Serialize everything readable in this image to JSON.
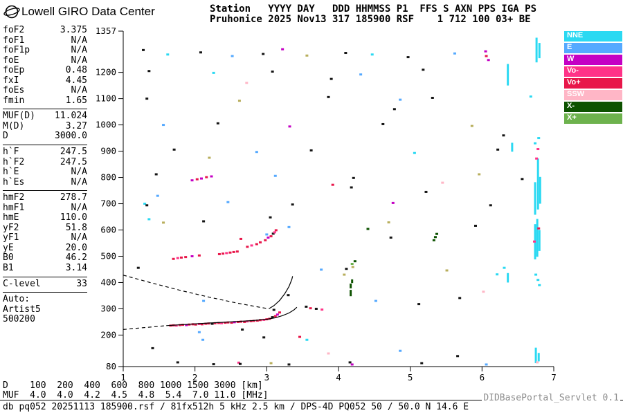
{
  "header": {
    "app_title": "Lowell GIRO Data Center",
    "station_line1": "Station   YYYY DAY   DDD HHMMSS P1  FFS S AXN PPS IGA PS",
    "station_line2": "Pruhonice 2025 Nov13 317 185900 RSF    1 712 100 03+ BE"
  },
  "params": {
    "groups": [
      {
        "rows": [
          [
            "foF2",
            "3.375"
          ],
          [
            "foF1",
            "N/A"
          ],
          [
            "foF1p",
            "N/A"
          ],
          [
            "foE",
            "N/A"
          ],
          [
            "foEp",
            "0.48"
          ],
          [
            "fxI",
            "4.45"
          ],
          [
            "foEs",
            "N/A"
          ],
          [
            "fmin",
            "1.65"
          ]
        ]
      },
      {
        "rows": [
          [
            "MUF(D)",
            "11.024"
          ],
          [
            "M(D)",
            "3.27"
          ],
          [
            "D",
            "3000.0"
          ]
        ]
      },
      {
        "rows": [
          [
            "h`F",
            "247.5"
          ],
          [
            "h`F2",
            "247.5"
          ],
          [
            "h`E",
            "N/A"
          ],
          [
            "h`Es",
            "N/A"
          ]
        ]
      },
      {
        "rows": [
          [
            "hmF2",
            "278.7"
          ],
          [
            "hmF1",
            "N/A"
          ],
          [
            "hmE",
            "110.0"
          ],
          [
            "yF2",
            "51.8"
          ],
          [
            "yF1",
            "N/A"
          ],
          [
            "yE",
            "20.0"
          ],
          [
            "B0",
            "46.2"
          ],
          [
            "B1",
            "3.14"
          ]
        ]
      },
      {
        "rows": [
          [
            "C-level",
            "33"
          ]
        ]
      }
    ],
    "auto_lines": [
      "Auto:",
      "Artist5",
      "500200"
    ]
  },
  "legend": {
    "items": [
      {
        "label": "NNE",
        "color": "#2BD9F2"
      },
      {
        "label": "E",
        "color": "#55A9FF"
      },
      {
        "label": "W",
        "color": "#C400C4"
      },
      {
        "label": "Vo-",
        "color": "#FF3388"
      },
      {
        "label": "Vo+",
        "color": "#E8174A"
      },
      {
        "label": "SSW",
        "color": "#FFB6C6"
      },
      {
        "label": "X-",
        "color": "#0D5200"
      },
      {
        "label": "X+",
        "color": "#6DB24D"
      }
    ]
  },
  "footer": {
    "d_line": "D    100  200  400  600  800 1000 1500 3000 [km]",
    "muf_line": "MUF  4.0  4.0  4.2  4.5  4.8  5.4  7.0 11.0 [MHz]",
    "status_line": "db pq052 20251113 185900.rsf / 81fx512h 5 kHz 2.5 km / DPS-4D PQ052 50 / 50.0 N 14.6 E",
    "servlet_label": "DIDBasePortal_Servlet 0.1"
  },
  "chart_data": {
    "type": "scatter",
    "title": "Digisonde ionogram, Pruhonice 2025 Nov13 317 185900",
    "x_axis": {
      "label": "[MHz]",
      "min": 1,
      "max": 7,
      "ticks": [
        1,
        2,
        3,
        4,
        5,
        6,
        7
      ]
    },
    "y_axis": {
      "label": "[km]",
      "min": 80,
      "max": 1357,
      "ticks": [
        80,
        200,
        300,
        400,
        500,
        600,
        700,
        800,
        900,
        1000,
        1100,
        1200,
        1357
      ]
    },
    "palette": {
      "C": "#2BD9F2",
      "E": "#55A9FF",
      "W": "#C400C4",
      "P": "#FF3388",
      "R": "#E8174A",
      "S": "#FFB6C6",
      "G": "#0D5200",
      "g": "#6DB24D",
      "K": "#141414",
      "Y": "#B8AE5C"
    },
    "echo_points": [
      [
        1.66,
        236,
        "R"
      ],
      [
        1.7,
        237,
        "R"
      ],
      [
        1.74,
        236,
        "P"
      ],
      [
        1.79,
        238,
        "R"
      ],
      [
        1.83,
        239,
        "R"
      ],
      [
        1.88,
        238,
        "W"
      ],
      [
        1.92,
        240,
        "R"
      ],
      [
        1.97,
        241,
        "R"
      ],
      [
        2.01,
        240,
        "R"
      ],
      [
        2.06,
        242,
        "P"
      ],
      [
        2.1,
        241,
        "R"
      ],
      [
        2.15,
        243,
        "R"
      ],
      [
        2.19,
        244,
        "R"
      ],
      [
        2.24,
        243,
        "K"
      ],
      [
        2.28,
        245,
        "R"
      ],
      [
        2.33,
        246,
        "R"
      ],
      [
        2.37,
        245,
        "P"
      ],
      [
        2.42,
        247,
        "R"
      ],
      [
        2.46,
        248,
        "R"
      ],
      [
        2.51,
        247,
        "R"
      ],
      [
        2.55,
        249,
        "W"
      ],
      [
        2.6,
        250,
        "R"
      ],
      [
        2.64,
        251,
        "R"
      ],
      [
        2.69,
        250,
        "R"
      ],
      [
        2.73,
        252,
        "P"
      ],
      [
        2.78,
        253,
        "R"
      ],
      [
        2.82,
        254,
        "R"
      ],
      [
        2.87,
        255,
        "R"
      ],
      [
        2.91,
        257,
        "R"
      ],
      [
        2.96,
        258,
        "P"
      ],
      [
        3.0,
        260,
        "R"
      ],
      [
        3.04,
        262,
        "R"
      ],
      [
        3.08,
        268,
        "K"
      ],
      [
        3.12,
        272,
        "R"
      ],
      [
        3.15,
        278,
        "W"
      ],
      [
        3.18,
        286,
        "R"
      ],
      [
        3.1,
        296,
        "K"
      ],
      [
        1.7,
        490,
        "R"
      ],
      [
        1.76,
        493,
        "P"
      ],
      [
        1.81,
        495,
        "R"
      ],
      [
        1.87,
        497,
        "R"
      ],
      [
        1.96,
        500,
        "W"
      ],
      [
        2.06,
        503,
        "R"
      ],
      [
        2.34,
        508,
        "R"
      ],
      [
        2.39,
        510,
        "R"
      ],
      [
        2.44,
        512,
        "P"
      ],
      [
        2.49,
        514,
        "R"
      ],
      [
        2.54,
        516,
        "R"
      ],
      [
        2.59,
        518,
        "R"
      ],
      [
        2.73,
        536,
        "R"
      ],
      [
        2.79,
        541,
        "P"
      ],
      [
        2.86,
        546,
        "R"
      ],
      [
        2.91,
        553,
        "R"
      ],
      [
        2.98,
        561,
        "R"
      ],
      [
        3.02,
        571,
        "W"
      ],
      [
        3.06,
        576,
        "R"
      ],
      [
        3.09,
        586,
        "K"
      ],
      [
        3.11,
        591,
        "P"
      ],
      [
        3.13,
        599,
        "R"
      ],
      [
        3.0,
        583,
        "E"
      ],
      [
        2.64,
        566,
        "R"
      ],
      [
        3.61,
        302,
        "R"
      ],
      [
        3.69,
        300,
        "K"
      ],
      [
        3.77,
        297,
        "P"
      ],
      [
        3.55,
        308,
        "K"
      ],
      [
        5.33,
        561,
        "G"
      ],
      [
        5.35,
        573,
        "G"
      ],
      [
        5.37,
        585,
        "G"
      ],
      [
        4.73,
        571,
        "K"
      ],
      [
        1.28,
        1285,
        "K"
      ],
      [
        1.62,
        1268,
        "C"
      ],
      [
        2.08,
        1276,
        "K"
      ],
      [
        2.52,
        1262,
        "E"
      ],
      [
        2.95,
        1270,
        "K"
      ],
      [
        3.22,
        1288,
        "W"
      ],
      [
        3.56,
        1264,
        "Y"
      ],
      [
        4.1,
        1274,
        "K"
      ],
      [
        4.47,
        1268,
        "C"
      ],
      [
        4.97,
        1258,
        "K"
      ],
      [
        5.62,
        1272,
        "E"
      ],
      [
        6.05,
        1280,
        "W"
      ],
      [
        6.06,
        1262,
        "R"
      ],
      [
        6.09,
        1247,
        "W"
      ],
      [
        1.36,
        1205,
        "K"
      ],
      [
        2.26,
        1198,
        "C"
      ],
      [
        3.08,
        1203,
        "K"
      ],
      [
        4.31,
        1192,
        "E"
      ],
      [
        5.18,
        1210,
        "K"
      ],
      [
        2.72,
        1160,
        "S"
      ],
      [
        3.9,
        1175,
        "K"
      ],
      [
        1.33,
        1100,
        "K"
      ],
      [
        2.62,
        1092,
        "Y"
      ],
      [
        3.86,
        1106,
        "K"
      ],
      [
        4.86,
        1096,
        "E"
      ],
      [
        5.31,
        1103,
        "K"
      ],
      [
        6.68,
        1108,
        "C"
      ],
      [
        4.78,
        1060,
        "K"
      ],
      [
        1.56,
        1000,
        "E"
      ],
      [
        2.32,
        1006,
        "K"
      ],
      [
        3.32,
        994,
        "W"
      ],
      [
        4.62,
        1003,
        "K"
      ],
      [
        5.86,
        996,
        "Y"
      ],
      [
        6.3,
        960,
        "K"
      ],
      [
        1.71,
        906,
        "K"
      ],
      [
        2.86,
        897,
        "E"
      ],
      [
        3.62,
        903,
        "K"
      ],
      [
        5.06,
        893,
        "C"
      ],
      [
        6.22,
        906,
        "K"
      ],
      [
        6.78,
        908,
        "P"
      ],
      [
        2.2,
        875,
        "Y"
      ],
      [
        1.96,
        789,
        "W"
      ],
      [
        2.03,
        793,
        "R"
      ],
      [
        2.09,
        796,
        "W"
      ],
      [
        2.16,
        801,
        "R"
      ],
      [
        2.23,
        804,
        "W"
      ],
      [
        1.46,
        812,
        "K"
      ],
      [
        3.12,
        806,
        "E"
      ],
      [
        4.21,
        798,
        "K"
      ],
      [
        5.96,
        812,
        "Y"
      ],
      [
        6.56,
        794,
        "K"
      ],
      [
        3.92,
        772,
        "R"
      ],
      [
        4.18,
        762,
        "K"
      ],
      [
        5.45,
        780,
        "S"
      ],
      [
        1.3,
        700,
        "C"
      ],
      [
        1.33,
        694,
        "K"
      ],
      [
        2.46,
        706,
        "E"
      ],
      [
        3.36,
        697,
        "K"
      ],
      [
        4.76,
        703,
        "W"
      ],
      [
        6.12,
        694,
        "K"
      ],
      [
        1.48,
        730,
        "E"
      ],
      [
        5.22,
        745,
        "K"
      ],
      [
        1.36,
        641,
        "C"
      ],
      [
        1.56,
        628,
        "Y"
      ],
      [
        2.12,
        633,
        "K"
      ],
      [
        3.31,
        611,
        "E"
      ],
      [
        4.7,
        629,
        "Y"
      ],
      [
        5.91,
        616,
        "K"
      ],
      [
        4.41,
        604,
        "G"
      ],
      [
        3.05,
        648,
        "K"
      ],
      [
        1.21,
        456,
        "K"
      ],
      [
        3.76,
        449,
        "E"
      ],
      [
        4.11,
        452,
        "K"
      ],
      [
        5.51,
        446,
        "Y"
      ],
      [
        6.31,
        456,
        "C"
      ],
      [
        4.2,
        459,
        "Y"
      ],
      [
        4.19,
        471,
        "g"
      ],
      [
        4.23,
        481,
        "G"
      ],
      [
        6.21,
        431,
        "C"
      ],
      [
        4.08,
        430,
        "Y"
      ],
      [
        5.69,
        341,
        "K"
      ],
      [
        4.52,
        330,
        "E"
      ],
      [
        5.12,
        318,
        "K"
      ],
      [
        6.02,
        365,
        "S"
      ],
      [
        3.3,
        352,
        "K"
      ],
      [
        2.12,
        330,
        "E"
      ],
      [
        1.76,
        96,
        "K"
      ],
      [
        2.11,
        182,
        "E"
      ],
      [
        2.26,
        89,
        "K"
      ],
      [
        2.61,
        95,
        "P"
      ],
      [
        2.63,
        90,
        "K"
      ],
      [
        3.06,
        93,
        "Y"
      ],
      [
        3.31,
        88,
        "K"
      ],
      [
        3.56,
        182,
        "C"
      ],
      [
        4.16,
        96,
        "K"
      ],
      [
        4.19,
        88,
        "W"
      ],
      [
        5.16,
        93,
        "K"
      ],
      [
        6.06,
        88,
        "E"
      ],
      [
        2.96,
        191,
        "K"
      ],
      [
        3.46,
        193,
        "R"
      ],
      [
        2.66,
        221,
        "K"
      ],
      [
        2.06,
        211,
        "E"
      ],
      [
        1.41,
        150,
        "K"
      ],
      [
        4.86,
        140,
        "E"
      ],
      [
        5.66,
        120,
        "K"
      ],
      [
        3.86,
        130,
        "S"
      ],
      [
        6.73,
        556,
        "P"
      ],
      [
        6.79,
        606,
        "R"
      ],
      [
        6.76,
        872,
        "P"
      ],
      [
        6.77,
        96,
        "S"
      ],
      [
        6.74,
        930,
        "C"
      ],
      [
        6.79,
        950,
        "C"
      ],
      [
        6.75,
        430,
        "C"
      ],
      [
        6.78,
        410,
        "C"
      ],
      [
        6.8,
        390,
        "C"
      ]
    ],
    "rfi_bars": [
      [
        6.36,
        400,
        436,
        "C"
      ],
      [
        6.36,
        1150,
        1232,
        "C"
      ],
      [
        6.74,
        488,
        622,
        "C"
      ],
      [
        6.77,
        498,
        642,
        "C"
      ],
      [
        6.8,
        520,
        600,
        "C"
      ],
      [
        6.74,
        658,
        782,
        "C"
      ],
      [
        6.78,
        678,
        872,
        "C"
      ],
      [
        6.81,
        700,
        802,
        "C"
      ],
      [
        6.76,
        1238,
        1332,
        "C"
      ],
      [
        6.8,
        1254,
        1312,
        "C"
      ],
      [
        6.75,
        93,
        152,
        "C"
      ],
      [
        6.79,
        100,
        132,
        "C"
      ],
      [
        6.42,
        898,
        932,
        "C"
      ],
      [
        4.17,
        348,
        372,
        "G"
      ],
      [
        4.17,
        378,
        396,
        "G"
      ],
      [
        4.19,
        398,
        412,
        "G"
      ]
    ],
    "traces": [
      {
        "name": "transmission-curve-dashed",
        "style": "dashed",
        "points": [
          [
            1.0,
            428
          ],
          [
            1.4,
            398
          ],
          [
            1.8,
            370
          ],
          [
            2.2,
            344
          ],
          [
            2.6,
            321
          ],
          [
            2.9,
            306
          ],
          [
            3.03,
            300
          ]
        ]
      },
      {
        "name": "f-trace-asymptote-solid",
        "style": "solid",
        "points": [
          [
            3.03,
            300
          ],
          [
            3.1,
            312
          ],
          [
            3.18,
            332
          ],
          [
            3.25,
            357
          ],
          [
            3.31,
            385
          ],
          [
            3.35,
            412
          ],
          [
            3.36,
            424
          ]
        ]
      },
      {
        "name": "extrapolated-trace-dashed",
        "style": "dashed",
        "points": [
          [
            1.0,
            221
          ],
          [
            1.2,
            226
          ],
          [
            1.4,
            231
          ],
          [
            1.6,
            236
          ]
        ]
      },
      {
        "name": "fitted-f-trace-solid",
        "style": "solid",
        "points": [
          [
            1.6,
            236
          ],
          [
            1.9,
            241
          ],
          [
            2.2,
            246
          ],
          [
            2.5,
            250
          ],
          [
            2.8,
            255
          ],
          [
            3.0,
            260
          ],
          [
            3.12,
            266
          ],
          [
            3.22,
            274
          ],
          [
            3.31,
            284
          ],
          [
            3.38,
            296
          ],
          [
            3.42,
            306
          ]
        ]
      }
    ]
  }
}
